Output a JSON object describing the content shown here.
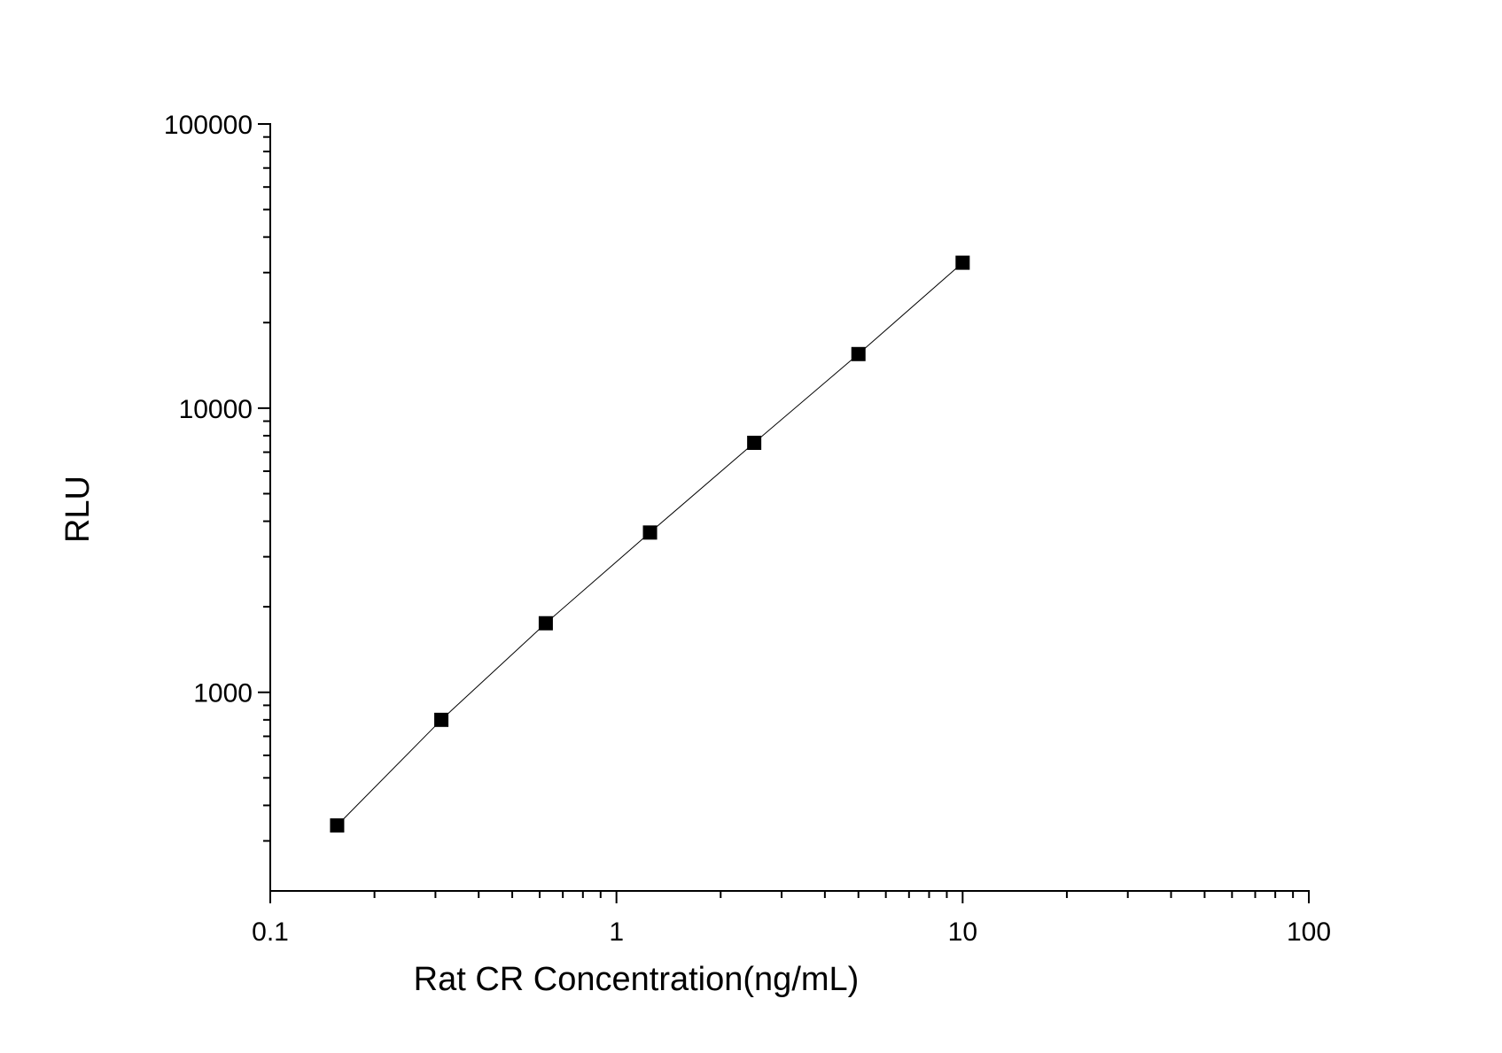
{
  "chart_data": {
    "type": "scatter",
    "x_scale": "log",
    "y_scale": "log",
    "xlabel": "Rat CR Concentration(ng/mL)",
    "ylabel": "RLU",
    "xlim": [
      0.1,
      100
    ],
    "ylim": [
      200,
      100000
    ],
    "x_ticks": [
      0.1,
      1,
      10,
      100
    ],
    "x_tick_labels": [
      "0.1",
      "1",
      "10",
      "100"
    ],
    "y_ticks": [
      1000,
      10000,
      100000
    ],
    "y_tick_labels": [
      "1000",
      "10000",
      "100000"
    ],
    "grid": false,
    "fit_line": true,
    "marker": "square",
    "marker_color": "#000000",
    "series": [
      {
        "x": [
          0.156,
          0.312,
          0.625,
          1.25,
          2.5,
          5,
          10
        ],
        "y": [
          340,
          800,
          1750,
          3650,
          7550,
          15500,
          32500
        ]
      }
    ]
  }
}
